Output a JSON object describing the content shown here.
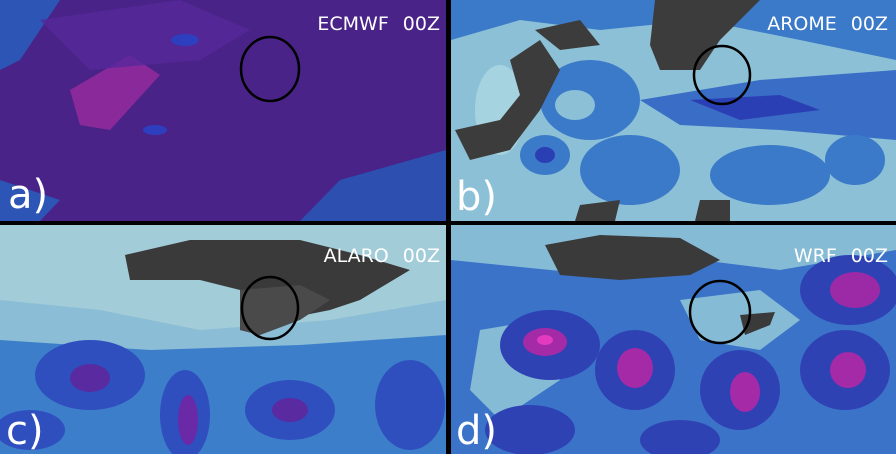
{
  "panels": [
    {
      "model": "ECMWF 00Z",
      "tag": "a)"
    },
    {
      "model": "AROME 00Z",
      "tag": "b)"
    },
    {
      "model": "ALARO 00Z",
      "tag": "c)"
    },
    {
      "model": "WRF 00Z",
      "tag": "d)"
    }
  ]
}
